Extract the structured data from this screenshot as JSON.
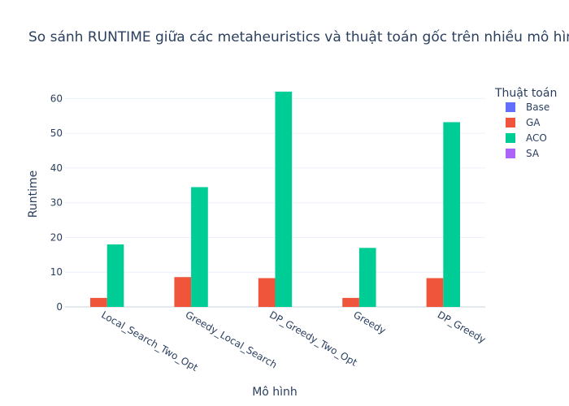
{
  "chart_data": {
    "type": "bar",
    "title": "So sánh RUNTIME giữa các metaheuristics và thuật toán gốc trên nhiều mô hình",
    "xlabel": "Mô hình",
    "ylabel": "Runtime",
    "categories": [
      "Local_Search_Two_Opt",
      "Greedy_Local_Search",
      "DP_Greedy_Two_Opt",
      "Greedy",
      "DP_Greedy"
    ],
    "ylim": [
      0,
      65
    ],
    "yticks": [
      0,
      10,
      20,
      30,
      40,
      50,
      60
    ],
    "grid": true,
    "legend": {
      "title": "Thuật toán",
      "placement": "right"
    },
    "series": [
      {
        "name": "Base",
        "color": "#636efa",
        "values": [
          0,
          0,
          0,
          0,
          0
        ]
      },
      {
        "name": "GA",
        "color": "#ef553b",
        "values": [
          2.6,
          8.6,
          8.3,
          2.6,
          8.3
        ]
      },
      {
        "name": "ACO",
        "color": "#00cc96",
        "values": [
          18.0,
          34.5,
          62.0,
          17.0,
          53.2
        ]
      },
      {
        "name": "SA",
        "color": "#ab63fa",
        "values": [
          0,
          0,
          0,
          0,
          0
        ]
      }
    ]
  }
}
